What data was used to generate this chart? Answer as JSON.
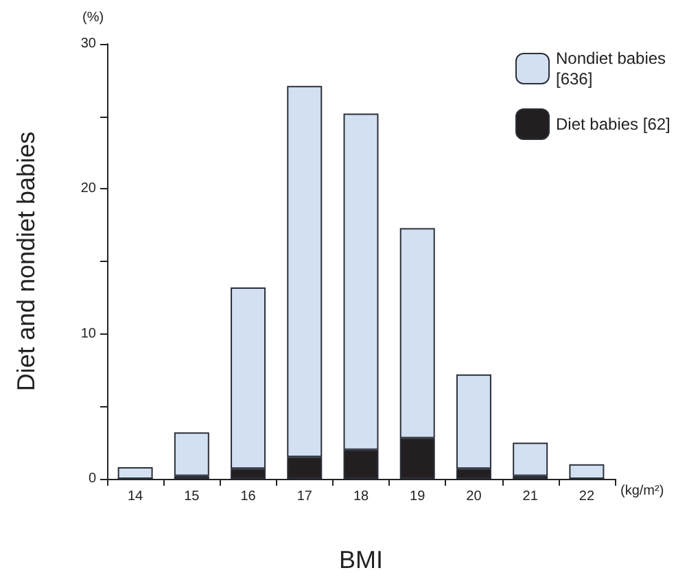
{
  "chart_data": {
    "type": "bar",
    "stacked": true,
    "xlabel": "BMI",
    "ylabel": "Diet and nondiet babies",
    "annotations": [
      "(%)",
      "(kg/m²)"
    ],
    "categories": [
      "14",
      "15",
      "16",
      "17",
      "18",
      "19",
      "20",
      "21",
      "22"
    ],
    "series": [
      {
        "name": "Diet babies [62]",
        "color": "#231f20",
        "values": [
          0,
          0.2,
          0.7,
          1.5,
          2.0,
          2.8,
          0.7,
          0.2,
          0
        ]
      },
      {
        "name": "Nondiet babies [636]",
        "color": "#d3e0f1",
        "values": [
          0.8,
          3.0,
          12.5,
          25.6,
          23.2,
          14.5,
          6.5,
          2.3,
          1.0
        ]
      }
    ],
    "ylim": [
      0,
      30
    ],
    "yticks": [
      0,
      {
        "value": 5,
        "label": null
      },
      10,
      {
        "value": 15,
        "label": null
      },
      20,
      {
        "value": 25,
        "label": null
      },
      30
    ],
    "grid": false,
    "legend": "top right"
  }
}
